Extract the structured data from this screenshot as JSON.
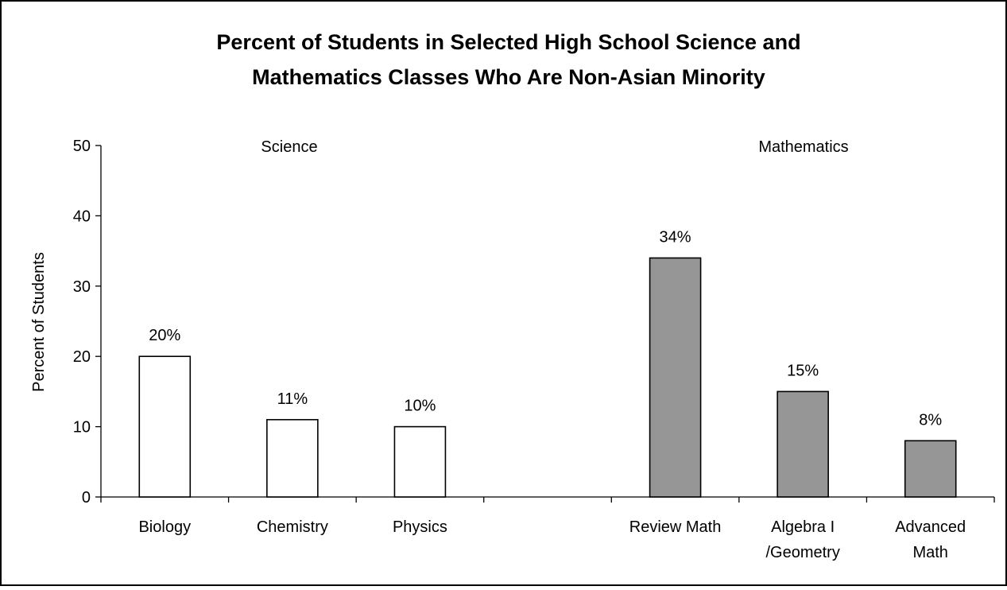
{
  "chart_data": {
    "type": "bar",
    "title_line1": "Percent of Students in Selected High School Science and",
    "title_line2": "Mathematics Classes Who Are Non-Asian Minority",
    "ylabel": "Percent of Students",
    "ylim": [
      0,
      50
    ],
    "yticks": [
      0,
      10,
      20,
      30,
      40,
      50
    ],
    "groups": [
      {
        "label": "Science",
        "color": "#ffffff"
      },
      {
        "label": "Mathematics",
        "color": "#969696"
      }
    ],
    "categories": [
      {
        "label_lines": [
          "Biology"
        ],
        "value": 20,
        "data_label": "20%",
        "group": 0
      },
      {
        "label_lines": [
          "Chemistry"
        ],
        "value": 11,
        "data_label": "11%",
        "group": 0
      },
      {
        "label_lines": [
          "Physics"
        ],
        "value": 10,
        "data_label": "10%",
        "group": 0
      },
      {
        "label_lines": [],
        "value": null,
        "data_label": "",
        "group": null
      },
      {
        "label_lines": [
          "Review Math"
        ],
        "value": 34,
        "data_label": "34%",
        "group": 1
      },
      {
        "label_lines": [
          "Algebra I",
          "/Geometry"
        ],
        "value": 15,
        "data_label": "15%",
        "group": 1
      },
      {
        "label_lines": [
          "Advanced",
          "Math"
        ],
        "value": 8,
        "data_label": "8%",
        "group": 1
      }
    ]
  }
}
